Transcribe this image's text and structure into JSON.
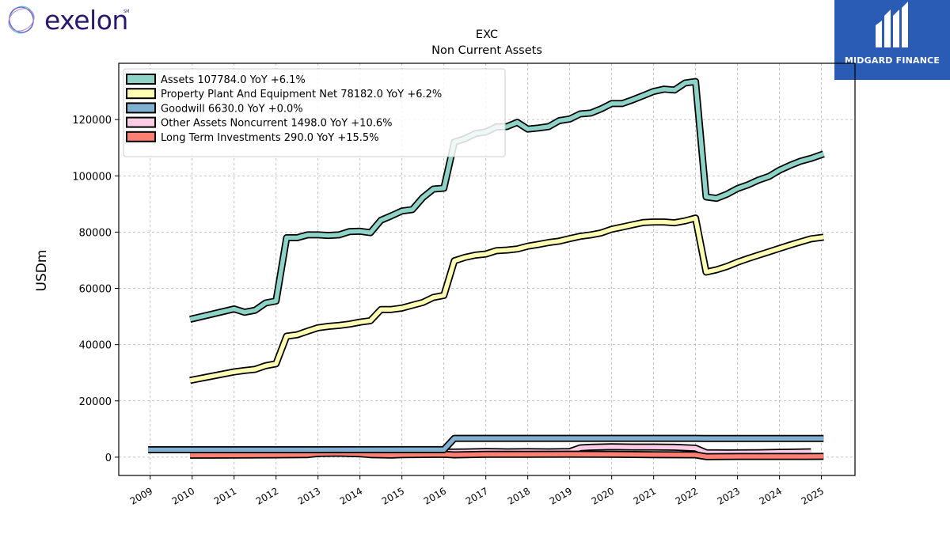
{
  "brand": {
    "name": "exelon",
    "mark": "SM",
    "badge_text": "MIDGARD FINANCE"
  },
  "chart_data": {
    "type": "line",
    "title": "EXC",
    "subtitle": "Non Current  Assets",
    "ylabel": "USDm",
    "xlabel": "",
    "ylim": [
      -6500,
      140000
    ],
    "xlim": [
      2008.25,
      2025.8
    ],
    "yticks": [
      0,
      20000,
      40000,
      60000,
      80000,
      100000,
      120000
    ],
    "ytick_labels": [
      "0",
      "20000",
      "40000",
      "60000",
      "80000",
      "100000",
      "120000"
    ],
    "xticks": [
      2009,
      2010,
      2011,
      2012,
      2013,
      2014,
      2015,
      2016,
      2017,
      2018,
      2019,
      2020,
      2021,
      2022,
      2023,
      2024,
      2025
    ],
    "xtick_labels": [
      "2009",
      "2010",
      "2011",
      "2012",
      "2013",
      "2014",
      "2015",
      "2016",
      "2017",
      "2018",
      "2019",
      "2020",
      "2021",
      "2022",
      "2023",
      "2024",
      "2025"
    ],
    "grid": true,
    "legend_position": "top-left",
    "series": [
      {
        "name": "Assets  107784.0 YoY +6.1%",
        "color": "#8dd3c7",
        "x": [
          2009.95,
          2011.0,
          2011.25,
          2011.5,
          2011.75,
          2012.0,
          2012.25,
          2012.5,
          2012.75,
          2013.0,
          2013.25,
          2013.5,
          2013.75,
          2014.0,
          2014.25,
          2014.5,
          2014.75,
          2015.0,
          2015.25,
          2015.5,
          2015.75,
          2016.0,
          2016.25,
          2016.5,
          2016.75,
          2017.0,
          2017.25,
          2017.5,
          2017.75,
          2018.0,
          2018.25,
          2018.5,
          2018.75,
          2019.0,
          2019.25,
          2019.5,
          2019.75,
          2020.0,
          2020.25,
          2020.5,
          2020.75,
          2021.0,
          2021.25,
          2021.5,
          2021.75,
          2022.0,
          2022.25,
          2022.5,
          2022.75,
          2023.0,
          2023.25,
          2023.5,
          2023.75,
          2024.0,
          2024.25,
          2024.5,
          2024.75,
          2025.05
        ],
        "values": [
          49000,
          52700,
          51500,
          52200,
          54800,
          55500,
          78000,
          78000,
          79000,
          79000,
          78800,
          79000,
          80200,
          80300,
          79800,
          84200,
          85800,
          87500,
          88000,
          92300,
          95300,
          95600,
          112000,
          113200,
          115000,
          115600,
          117400,
          117500,
          119000,
          116600,
          117000,
          117500,
          119600,
          120200,
          122000,
          122300,
          123800,
          125700,
          125700,
          127000,
          128500,
          130000,
          130800,
          130500,
          133000,
          133500,
          92500,
          92000,
          93500,
          95500,
          96800,
          98500,
          99800,
          102000,
          103700,
          105200,
          106200,
          107784
        ]
      },
      {
        "name": "Property Plant And Equipment Net  78182.0 YoY +6.2%",
        "color": "#ffffb3",
        "x": [
          2009.95,
          2011.0,
          2011.25,
          2011.5,
          2011.75,
          2012.0,
          2012.25,
          2012.5,
          2012.75,
          2013.0,
          2013.25,
          2013.5,
          2013.75,
          2014.0,
          2014.25,
          2014.5,
          2014.75,
          2015.0,
          2015.25,
          2015.5,
          2015.75,
          2016.0,
          2016.25,
          2016.5,
          2016.75,
          2017.0,
          2017.25,
          2017.5,
          2017.75,
          2018.0,
          2018.25,
          2018.5,
          2018.75,
          2019.0,
          2019.25,
          2019.5,
          2019.75,
          2020.0,
          2020.25,
          2020.5,
          2020.75,
          2021.0,
          2021.25,
          2021.5,
          2021.75,
          2022.0,
          2022.25,
          2022.5,
          2022.75,
          2023.0,
          2023.25,
          2023.5,
          2023.75,
          2024.0,
          2024.25,
          2024.5,
          2024.75,
          2025.05
        ],
        "values": [
          27300,
          30300,
          30800,
          31200,
          32500,
          33200,
          43000,
          43500,
          44800,
          46000,
          46500,
          46800,
          47300,
          48000,
          48500,
          52500,
          52500,
          53000,
          54000,
          55000,
          56800,
          57500,
          69800,
          71000,
          71800,
          72200,
          73400,
          73600,
          74000,
          75000,
          75600,
          76300,
          76800,
          77700,
          78500,
          79000,
          79700,
          81000,
          81800,
          82600,
          83400,
          83600,
          83600,
          83300,
          84000,
          85000,
          65800,
          66600,
          67800,
          69300,
          70600,
          71800,
          73000,
          74200,
          75400,
          76500,
          77600,
          78182
        ]
      },
      {
        "name": "Goodwill  6630.0 YoY +0.0%",
        "color": "#80b1d3",
        "x": [
          2008.95,
          2016.0,
          2016.25,
          2021.75,
          2022.0,
          2022.25,
          2025.05
        ],
        "values": [
          2625,
          2672,
          6677,
          6677,
          6677,
          6630,
          6630
        ]
      },
      {
        "name": "Other Assets Noncurrent  1498.0 YoY +10.6%",
        "color": "#fccde5",
        "x": [
          2009.95,
          2011.0,
          2012.0,
          2013.0,
          2014.0,
          2015.0,
          2016.0,
          2016.5,
          2017.0,
          2017.5,
          2018.0,
          2018.5,
          2019.0,
          2019.25,
          2019.5,
          2020.0,
          2020.5,
          2021.0,
          2021.5,
          2022.0,
          2022.25,
          2022.75,
          2023.5,
          2024.0,
          2024.75
        ],
        "values": [
          1200,
          1300,
          1450,
          1600,
          1700,
          1750,
          1800,
          1850,
          2000,
          1900,
          1950,
          1900,
          2000,
          3300,
          3500,
          3700,
          3600,
          3600,
          3500,
          3200,
          1600,
          1500,
          1600,
          1700,
          1900
        ]
      },
      {
        "name": "Long Term Investments  290.0 YoY +15.5%",
        "color": "#fb8072",
        "x": [
          2009.95,
          2011.0,
          2012.0,
          2012.75,
          2013.0,
          2013.5,
          2014.0,
          2014.25,
          2014.5,
          2014.75,
          2015.0,
          2016.0,
          2016.25,
          2016.5,
          2017.0,
          2018.0,
          2019.0,
          2020.0,
          2021.0,
          2022.0,
          2022.25,
          2023.0,
          2024.0,
          2025.05
        ],
        "values": [
          700,
          750,
          800,
          900,
          1300,
          1400,
          1200,
          900,
          800,
          750,
          900,
          1000,
          800,
          900,
          1000,
          1000,
          1050,
          1000,
          900,
          800,
          200,
          250,
          250,
          290
        ]
      }
    ]
  }
}
